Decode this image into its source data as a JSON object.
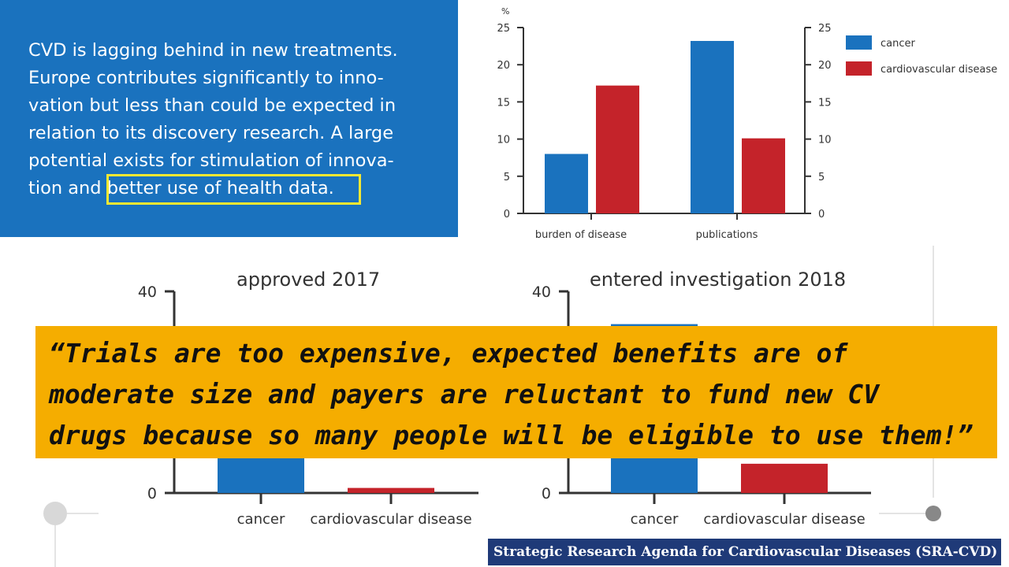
{
  "text_panel": {
    "lines": [
      "CVD is lagging behind in new treatments.",
      "Europe contributes significantly to inno-",
      "vation but less than could be expected in",
      "relation to its discovery research. A large",
      "potential exists for stimulation of innova-",
      "tion and better use of health data."
    ],
    "highlighted_phrase": "better use of health data.",
    "background_color": "#1a72be",
    "highlight_color": "#f6e832"
  },
  "quote": {
    "lines": [
      "“Trials are too expensive, expected benefits are of",
      "moderate size and payers are reluctant to fund new CV",
      "drugs because so many people will be eligible to use them!”"
    ],
    "background_color": "#f5ad00"
  },
  "footer": {
    "text": "Strategic Research Agenda for Cardiovascular Diseases (SRA-CVD)",
    "background_color": "#1f3a78"
  },
  "colors": {
    "cancer": "#1a72be",
    "cardiovascular": "#c4232a"
  },
  "chart_data": [
    {
      "type": "bar",
      "title": "",
      "unit_label": "%",
      "categories": [
        "burden of disease",
        "publications"
      ],
      "series": [
        {
          "name": "cancer",
          "values": [
            8,
            23.2
          ]
        },
        {
          "name": "cardiovascular disease",
          "values": [
            17.2,
            10.1
          ]
        }
      ],
      "ylim": [
        0,
        25
      ],
      "yticks": [
        0,
        5,
        10,
        15,
        20,
        25
      ],
      "legend": "top-right",
      "grid": false
    },
    {
      "type": "bar",
      "title": "approved 2017",
      "categories": [
        "cancer",
        "cardiovascular disease"
      ],
      "values": [
        33,
        1
      ],
      "ylim": [
        0,
        40
      ],
      "yticks": [
        0,
        40
      ],
      "grid": false
    },
    {
      "type": "bar",
      "title": "entered investigation 2018",
      "categories": [
        "cancer",
        "cardiovascular disease"
      ],
      "values": [
        33.5,
        5.8
      ],
      "ylim": [
        0,
        40
      ],
      "yticks": [
        0,
        40
      ],
      "grid": false
    }
  ]
}
